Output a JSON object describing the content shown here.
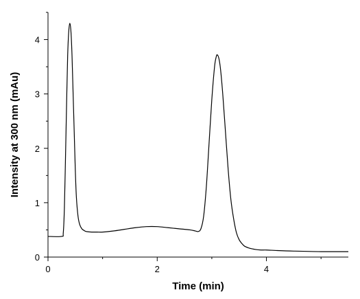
{
  "chart_data": {
    "type": "line",
    "title": "",
    "xlabel": "Time (min)",
    "ylabel": "Intensity at 300 nm (mAu)",
    "xlim": [
      0,
      5.5
    ],
    "ylim": [
      0,
      4.5
    ],
    "x_ticks": [
      0,
      2,
      4
    ],
    "y_ticks": [
      0,
      1,
      2,
      3,
      4
    ],
    "grid": false,
    "legend": "none",
    "line_color": "#000000",
    "series": [
      {
        "x": [
          0.0,
          0.25,
          0.28,
          0.3,
          0.32,
          0.34,
          0.36,
          0.38,
          0.4,
          0.42,
          0.44,
          0.46,
          0.48,
          0.5,
          0.52,
          0.55,
          0.58,
          0.62,
          0.66,
          0.7,
          0.8,
          0.9,
          1.0,
          1.2,
          1.4,
          1.6,
          1.8,
          2.0,
          2.2,
          2.4,
          2.6,
          2.7,
          2.75,
          2.8,
          2.85,
          2.9,
          2.95,
          3.0,
          3.05,
          3.08,
          3.1,
          3.13,
          3.16,
          3.2,
          3.25,
          3.3,
          3.35,
          3.4,
          3.45,
          3.5,
          3.55,
          3.6,
          3.7,
          3.8,
          3.9,
          4.0,
          4.2,
          4.5,
          5.0,
          5.5
        ],
        "y": [
          0.38,
          0.38,
          0.45,
          0.9,
          1.8,
          2.8,
          3.7,
          4.15,
          4.3,
          4.15,
          3.7,
          3.0,
          2.3,
          1.6,
          1.1,
          0.75,
          0.6,
          0.52,
          0.49,
          0.47,
          0.46,
          0.46,
          0.46,
          0.48,
          0.51,
          0.54,
          0.56,
          0.56,
          0.54,
          0.52,
          0.5,
          0.48,
          0.47,
          0.52,
          0.75,
          1.3,
          2.1,
          2.9,
          3.5,
          3.68,
          3.72,
          3.65,
          3.45,
          3.0,
          2.3,
          1.6,
          1.05,
          0.7,
          0.45,
          0.32,
          0.25,
          0.2,
          0.16,
          0.14,
          0.13,
          0.13,
          0.12,
          0.11,
          0.1,
          0.1
        ]
      }
    ]
  }
}
